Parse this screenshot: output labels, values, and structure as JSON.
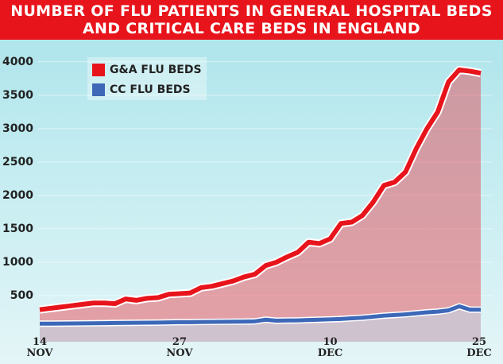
{
  "chart_data": {
    "type": "area",
    "title": "NUMBER OF FLU PATIENTS IN GENERAL HOSPITAL BEDS AND CRITICAL CARE BEDS IN ENGLAND",
    "categories": [
      "14\nNOV",
      null,
      null,
      null,
      null,
      null,
      null,
      null,
      null,
      null,
      null,
      null,
      null,
      "27\nNOV",
      null,
      null,
      null,
      null,
      null,
      null,
      null,
      null,
      null,
      null,
      null,
      null,
      null,
      "10\nDEC",
      null,
      null,
      null,
      null,
      null,
      null,
      null,
      null,
      null,
      null,
      null,
      null,
      null,
      "25\nDEC"
    ],
    "series": [
      {
        "name": "G&A FLU BEDS",
        "color": "#e8141b",
        "values": [
          290,
          310,
          330,
          350,
          370,
          390,
          390,
          380,
          450,
          430,
          460,
          470,
          520,
          530,
          540,
          620,
          640,
          680,
          720,
          780,
          820,
          950,
          1000,
          1080,
          1150,
          1300,
          1280,
          1350,
          1580,
          1600,
          1700,
          1900,
          2150,
          2200,
          2350,
          2700,
          3000,
          3250,
          3700,
          3880,
          3860,
          3830
        ]
      },
      {
        "name": "CC FLU BEDS",
        "color": "#3d68b8",
        "values": [
          80,
          80,
          82,
          84,
          85,
          87,
          88,
          90,
          92,
          93,
          95,
          97,
          100,
          102,
          103,
          105,
          107,
          108,
          110,
          112,
          115,
          140,
          125,
          128,
          130,
          135,
          140,
          145,
          150,
          160,
          170,
          185,
          200,
          210,
          220,
          235,
          250,
          260,
          280,
          340,
          290,
          290
        ]
      }
    ],
    "ylim": [
      0,
      4200
    ],
    "yticks": [
      500,
      1000,
      1500,
      2000,
      2500,
      3000,
      3500,
      4000
    ],
    "grid": true
  }
}
